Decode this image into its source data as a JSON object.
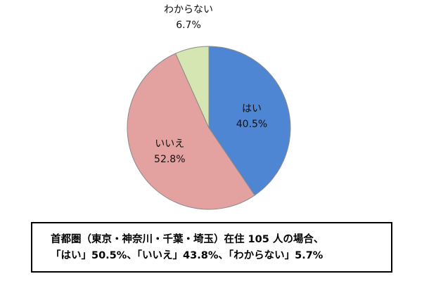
{
  "chart_data": {
    "type": "pie",
    "title": "",
    "slices": [
      {
        "label": "はい",
        "value": 40.5,
        "value_label": "40.5%",
        "color": "#4f86d3"
      },
      {
        "label": "いいえ",
        "value": 52.8,
        "value_label": "52.8%",
        "color": "#e3a19f"
      },
      {
        "label": "わからない",
        "value": 6.7,
        "value_label": "6.7%",
        "color": "#d6e6b3"
      }
    ],
    "start_angle": "12 o'clock",
    "direction": "clockwise",
    "legend": "none"
  },
  "note": {
    "line1": "首都圏（東京・神奈川・千葉・埼玉）在住 105 人の場合、",
    "line2": "「はい」50.5%、「いいえ」43.8%、「わからない」5.7%"
  }
}
